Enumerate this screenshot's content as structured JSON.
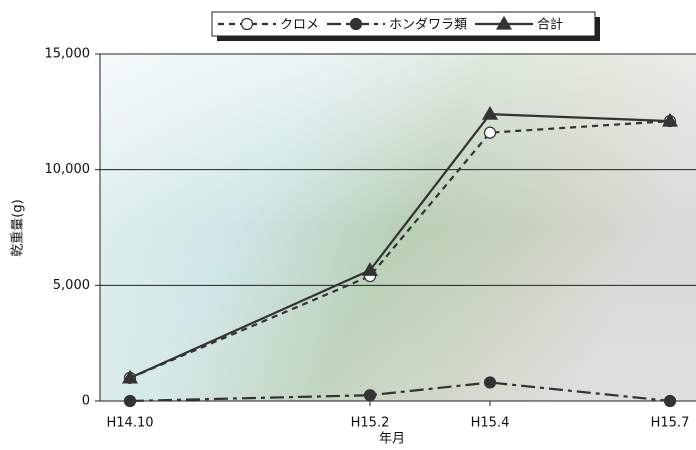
{
  "chart_data": {
    "type": "line",
    "categories": [
      "H14.10",
      "H15.2",
      "H15.4",
      "H15.7"
    ],
    "x_label": "年月",
    "y_label": "乾重量(g)",
    "series": [
      {
        "name": "クロメ",
        "color": "#333333",
        "line_style": "dashed",
        "marker": "open-circle",
        "values": [
          1000,
          5400,
          11600,
          12100
        ]
      },
      {
        "name": "ホンダワラ類",
        "color": "#333333",
        "line_style": "dash-dot",
        "marker": "filled-circle",
        "values": [
          0,
          250,
          800,
          0
        ]
      },
      {
        "name": "合計",
        "color": "#333333",
        "line_style": "solid",
        "marker": "triangle",
        "values": [
          1000,
          5650,
          12400,
          12100
        ]
      }
    ],
    "ylim": [
      0,
      15000
    ],
    "yticks": [
      0,
      {
        "value": 5000,
        "label": "5,000"
      },
      {
        "value": 10000,
        "label": "10,000"
      },
      {
        "value": 15000,
        "label": "15,000"
      }
    ],
    "grid": true,
    "legend": "top"
  }
}
